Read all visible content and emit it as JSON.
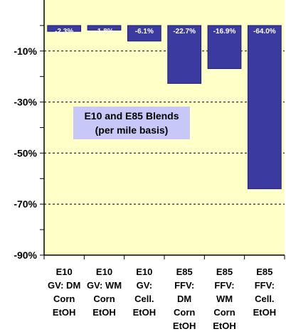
{
  "chart_data": {
    "type": "bar",
    "categories": [
      [
        "E10",
        "GV: DM",
        "Corn",
        "EtOH"
      ],
      [
        "E10",
        "GV: WM",
        "Corn",
        "EtOH"
      ],
      [
        "E10",
        "GV:",
        "Cell.",
        "EtOH"
      ],
      [
        "E85",
        "FFV:",
        "DM",
        "Corn",
        "EtOH"
      ],
      [
        "E85",
        "FFV:",
        "WM",
        "Corn",
        "EtOH"
      ],
      [
        "E85",
        "FFV:",
        "Cell.",
        "EtOH"
      ]
    ],
    "values": [
      -2.3,
      -1.8,
      -6.1,
      -22.7,
      -16.9,
      -64.0
    ],
    "data_labels": [
      "-2.3%",
      "-1.8%",
      "-6.1%",
      "-22.7%",
      "-16.9%",
      "-64.0%"
    ],
    "ylim": [
      -90,
      10
    ],
    "yticks": [
      -10,
      -30,
      -50,
      -70,
      -90
    ],
    "ytick_labels": [
      "-10%",
      "-30%",
      "-50%",
      "-70%",
      "-90%"
    ],
    "grid": "dashed horizontal at labeled ticks",
    "annotation": [
      "E10 and E85 Blends",
      "(per mile basis)"
    ],
    "colors": {
      "plot_background": "#FFFFC8",
      "bar_fill": "#3A3AA0",
      "bar_edge": "#1E1E6E",
      "annotation_box": "#C8C8F8",
      "axis": "#000000"
    }
  }
}
